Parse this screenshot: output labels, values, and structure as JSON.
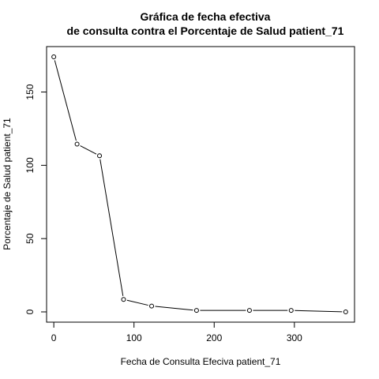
{
  "chart_data": {
    "type": "line",
    "title_line1": "Gráfica de fecha efectiva",
    "title_line2": "de consulta contra el Porcentaje de Salud  patient_71",
    "xlabel": "Fecha de Consulta Efeciva  patient_71",
    "ylabel": "Porcentaje de Salud  patient_71",
    "xlim": [
      -9,
      375
    ],
    "ylim": [
      -7,
      181
    ],
    "xticks": [
      0,
      100,
      200,
      300
    ],
    "yticks": [
      0,
      50,
      100,
      150
    ],
    "grid": false,
    "x": [
      0,
      29,
      57,
      87,
      122,
      178,
      244,
      296,
      364
    ],
    "y": [
      174,
      114.5,
      106.5,
      8.5,
      4,
      1,
      1,
      1,
      0
    ]
  }
}
